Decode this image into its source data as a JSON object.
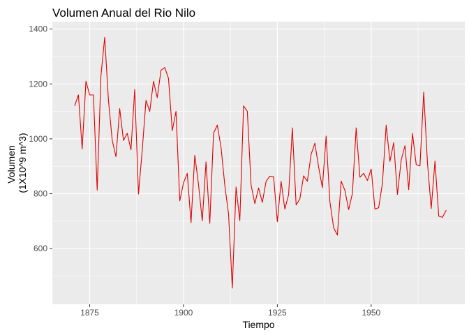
{
  "chart_data": {
    "type": "line",
    "title": "Volumen Anual del Rio Nilo",
    "xlabel": "Tiempo",
    "ylabel_lines": [
      "Volumen",
      "(1X10^9 m^3)"
    ],
    "xlim": [
      1865.05,
      1974.95
    ],
    "ylim": [
      397,
      1427
    ],
    "xticks": [
      1875,
      1900,
      1925,
      1950
    ],
    "yticks": [
      600,
      800,
      1000,
      1200,
      1400
    ],
    "grid": true,
    "legend": "none",
    "series": [
      {
        "color": "#e00000",
        "x": [
          1871,
          1872,
          1873,
          1874,
          1875,
          1876,
          1877,
          1878,
          1879,
          1880,
          1881,
          1882,
          1883,
          1884,
          1885,
          1886,
          1887,
          1888,
          1889,
          1890,
          1891,
          1892,
          1893,
          1894,
          1895,
          1896,
          1897,
          1898,
          1899,
          1900,
          1901,
          1902,
          1903,
          1904,
          1905,
          1906,
          1907,
          1908,
          1909,
          1910,
          1911,
          1912,
          1913,
          1914,
          1915,
          1916,
          1917,
          1918,
          1919,
          1920,
          1921,
          1922,
          1923,
          1924,
          1925,
          1926,
          1927,
          1928,
          1929,
          1930,
          1931,
          1932,
          1933,
          1934,
          1935,
          1936,
          1937,
          1938,
          1939,
          1940,
          1941,
          1942,
          1943,
          1944,
          1945,
          1946,
          1947,
          1948,
          1949,
          1950,
          1951,
          1952,
          1953,
          1954,
          1955,
          1956,
          1957,
          1958,
          1959,
          1960,
          1961,
          1962,
          1963,
          1964,
          1965,
          1966,
          1967,
          1968,
          1969,
          1970
        ],
        "y": [
          1120,
          1160,
          963,
          1210,
          1160,
          1160,
          813,
          1230,
          1370,
          1140,
          995,
          935,
          1110,
          994,
          1020,
          960,
          1180,
          799,
          958,
          1140,
          1100,
          1210,
          1150,
          1250,
          1260,
          1220,
          1030,
          1100,
          774,
          840,
          874,
          694,
          940,
          833,
          701,
          916,
          692,
          1020,
          1050,
          969,
          831,
          726,
          456,
          824,
          702,
          1120,
          1100,
          832,
          764,
          821,
          768,
          845,
          864,
          862,
          698,
          845,
          744,
          796,
          1040,
          759,
          781,
          865,
          845,
          944,
          984,
          897,
          822,
          1010,
          771,
          676,
          649,
          846,
          812,
          742,
          801,
          1040,
          860,
          874,
          848,
          890,
          744,
          749,
          838,
          1050,
          918,
          986,
          797,
          923,
          975,
          815,
          1020,
          906,
          901,
          1170,
          912,
          746,
          919,
          718,
          714,
          740
        ]
      }
    ]
  }
}
